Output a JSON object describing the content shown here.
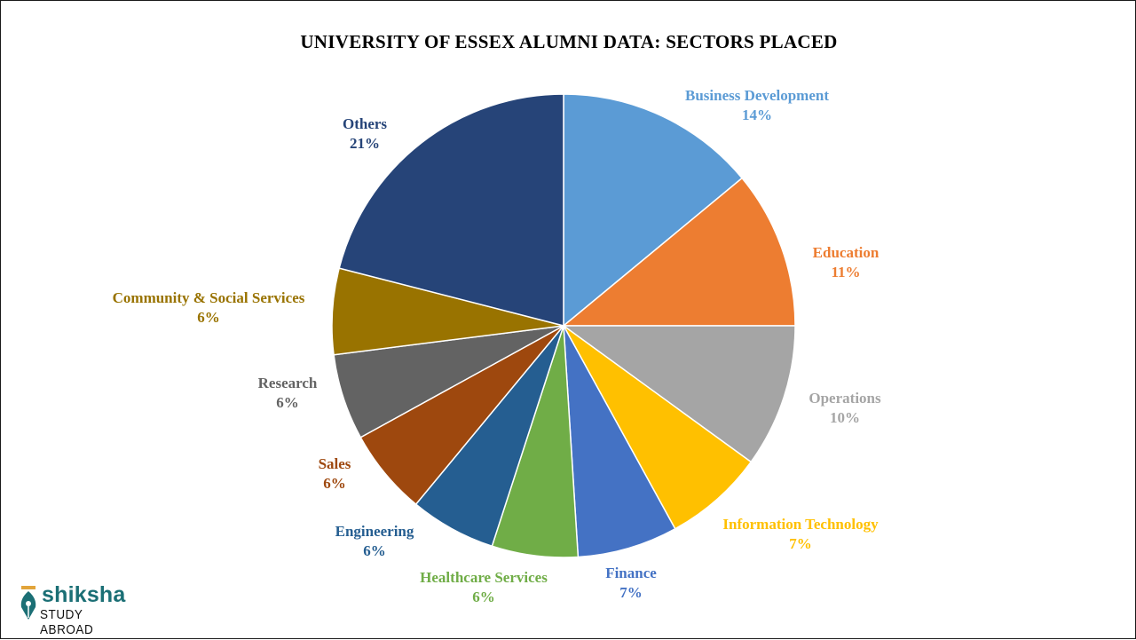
{
  "chart_data": {
    "type": "pie",
    "title": "UNIVERSITY  OF ESSEX ALUMNI DATA:  SECTORS  PLACED",
    "slices": [
      {
        "label": "Business Development",
        "value": 14,
        "value_label": "14%",
        "color": "#5b9bd5"
      },
      {
        "label": "Education",
        "value": 11,
        "value_label": "11%",
        "color": "#ed7d31"
      },
      {
        "label": "Operations",
        "value": 10,
        "value_label": "10%",
        "color": "#a5a5a5"
      },
      {
        "label": "Information Technology",
        "value": 7,
        "value_label": "7%",
        "color": "#ffc000"
      },
      {
        "label": "Finance",
        "value": 7,
        "value_label": "7%",
        "color": "#4472c4"
      },
      {
        "label": "Healthcare Services",
        "value": 6,
        "value_label": "6%",
        "color": "#70ad47"
      },
      {
        "label": "Engineering",
        "value": 6,
        "value_label": "6%",
        "color": "#255e91"
      },
      {
        "label": "Sales",
        "value": 6,
        "value_label": "6%",
        "color": "#9e480e"
      },
      {
        "label": "Research",
        "value": 6,
        "value_label": "6%",
        "color": "#636363"
      },
      {
        "label": "Community & Social Services",
        "value": 6,
        "value_label": "6%",
        "color": "#997300"
      },
      {
        "label": "Others",
        "value": 21,
        "value_label": "21%",
        "color": "#264478"
      }
    ],
    "start": "12 o'clock",
    "direction": "clockwise",
    "legend": "none"
  },
  "logo": {
    "brand": "shiksha",
    "tagline": "STUDY ABROAD",
    "brand_color": "#1b6f75"
  }
}
